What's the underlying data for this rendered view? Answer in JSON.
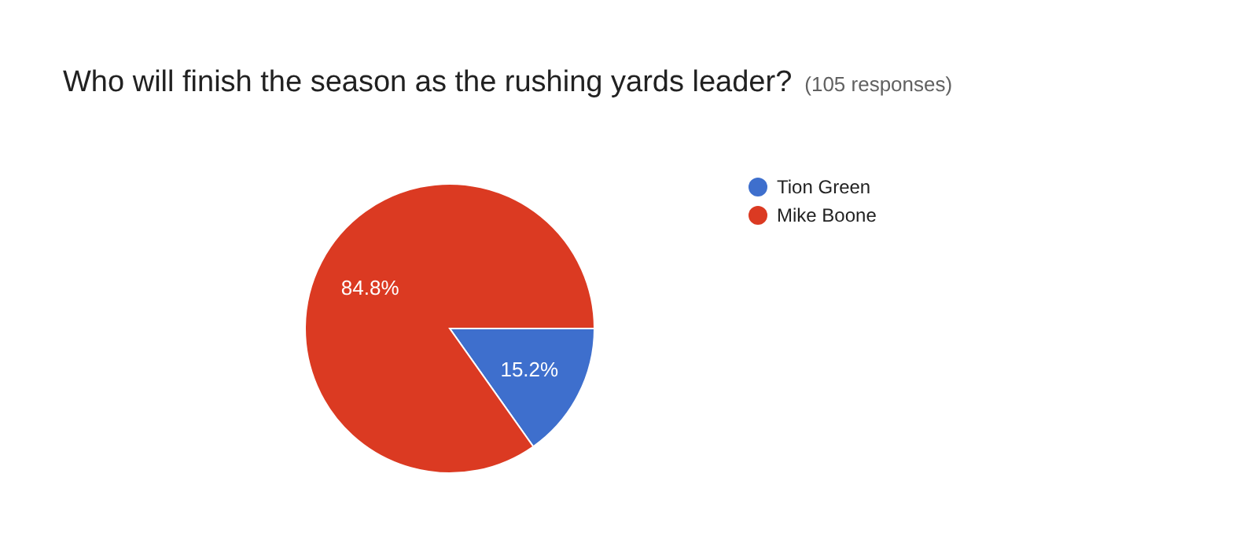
{
  "chart_data": {
    "type": "pie",
    "title": "Who will finish the season as the rushing yards leader?",
    "subtitle": "(105 responses)",
    "categories": [
      "Tion Green",
      "Mike Boone"
    ],
    "values": [
      15.2,
      84.8
    ],
    "colors": [
      "#3e6fcd",
      "#db3a22"
    ],
    "value_labels": [
      "15.2%",
      "84.8%"
    ],
    "legend": "top right"
  }
}
